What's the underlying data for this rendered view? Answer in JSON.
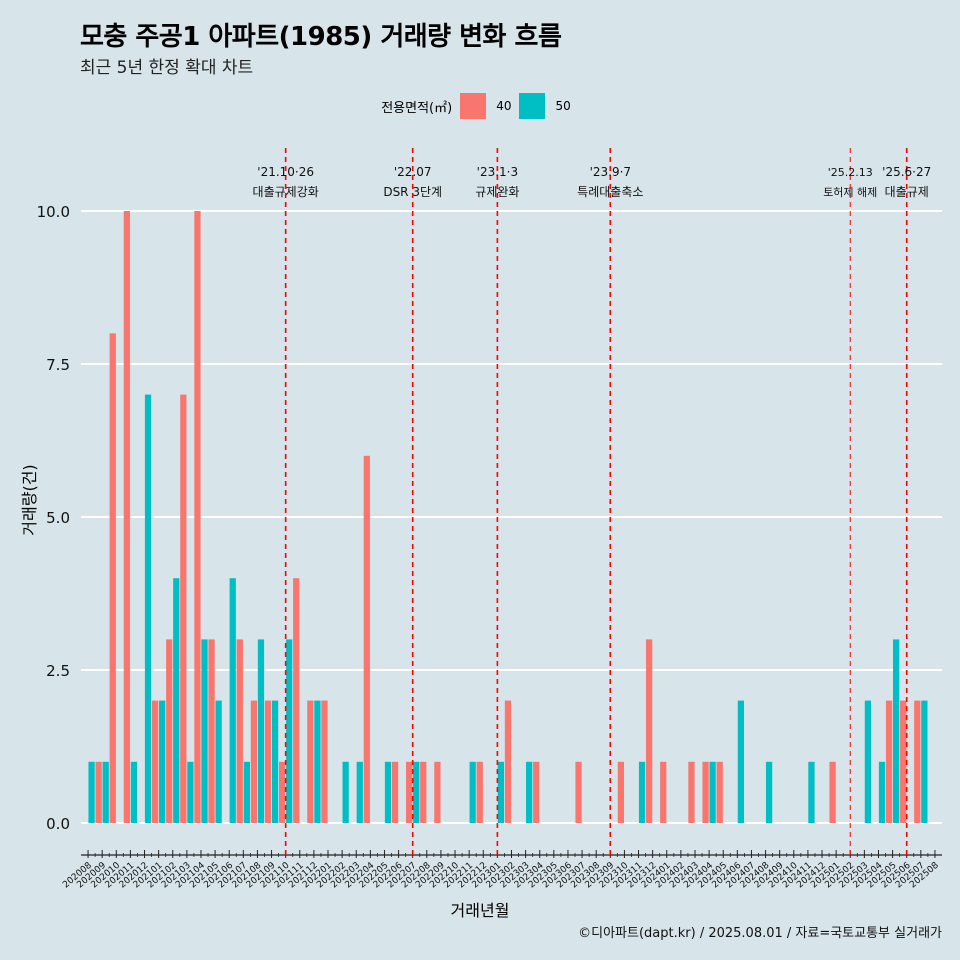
{
  "title": "모충 주공1 아파트(1985) 거래량 변화 흐름",
  "subtitle": "최근 5년 한정 확대 차트",
  "caption": "©디아파트(dapt.kr) / 2025.08.01 / 자료=국토교통부 실거래가",
  "colors": {
    "background": "#d7e4ea",
    "grid": "#ffffff",
    "s40": "#f8766d",
    "s50": "#00bfc4",
    "event": "#ff0000"
  },
  "chart_data": {
    "type": "bar",
    "title": "모충 주공1 아파트(1985) 거래량 변화 흐름",
    "xlabel": "거래년월",
    "ylabel": "거래량(건)",
    "ylim": [
      0,
      10
    ],
    "yticks": [
      "0.0",
      "2.5",
      "5.0",
      "7.5",
      "10.0"
    ],
    "ytick_values": [
      0,
      2.5,
      5,
      7.5,
      10
    ],
    "legend_title": "전용면적(㎡)",
    "legend_position": "top",
    "categories": [
      "202008",
      "202009",
      "202010",
      "202011",
      "202012",
      "202101",
      "202102",
      "202103",
      "202104",
      "202105",
      "202106",
      "202107",
      "202108",
      "202109",
      "202110",
      "202111",
      "202112",
      "202201",
      "202202",
      "202203",
      "202204",
      "202205",
      "202206",
      "202207",
      "202208",
      "202209",
      "202210",
      "202211",
      "202212",
      "202301",
      "202302",
      "202303",
      "202304",
      "202305",
      "202306",
      "202307",
      "202308",
      "202309",
      "202310",
      "202311",
      "202312",
      "202401",
      "202402",
      "202403",
      "202404",
      "202405",
      "202406",
      "202407",
      "202408",
      "202409",
      "202410",
      "202411",
      "202412",
      "202501",
      "202502",
      "202503",
      "202504",
      "202505",
      "202506",
      "202507",
      "202508"
    ],
    "series": [
      {
        "name": "40",
        "values": [
          0,
          1,
          8,
          10,
          0,
          2,
          3,
          7,
          10,
          3,
          0,
          3,
          2,
          2,
          1,
          4,
          2,
          2,
          0,
          0,
          6,
          0,
          1,
          1,
          1,
          1,
          0,
          0,
          1,
          0,
          2,
          0,
          1,
          0,
          0,
          1,
          0,
          0,
          1,
          0,
          3,
          1,
          0,
          1,
          1,
          1,
          0,
          0,
          0,
          0,
          0,
          0,
          0,
          1,
          0,
          0,
          0,
          2,
          2,
          2,
          0
        ]
      },
      {
        "name": "50",
        "values": [
          1,
          1,
          0,
          1,
          7,
          2,
          4,
          1,
          3,
          2,
          4,
          1,
          3,
          2,
          3,
          0,
          2,
          0,
          1,
          1,
          0,
          1,
          0,
          1,
          0,
          0,
          0,
          1,
          0,
          1,
          0,
          1,
          0,
          0,
          0,
          0,
          0,
          0,
          0,
          1,
          0,
          0,
          0,
          0,
          1,
          0,
          2,
          0,
          1,
          0,
          0,
          1,
          0,
          0,
          0,
          2,
          1,
          3,
          0,
          2,
          0
        ]
      }
    ],
    "events": [
      {
        "position": 14.5,
        "date": "'21.10·26",
        "label": "대출규제강화"
      },
      {
        "position": 23.5,
        "date": "'22.07",
        "label": "DSR 3단계"
      },
      {
        "position": 29.5,
        "date": "'23.1·3",
        "label": "규제완화"
      },
      {
        "position": 37.5,
        "date": "'23.9·7",
        "label": "특례대출축소"
      },
      {
        "position": 54.5,
        "date": "'25.2.13",
        "label": "토허제 해제"
      },
      {
        "position": 58.5,
        "date": "'25.6·27",
        "label": "대출규제"
      }
    ]
  }
}
